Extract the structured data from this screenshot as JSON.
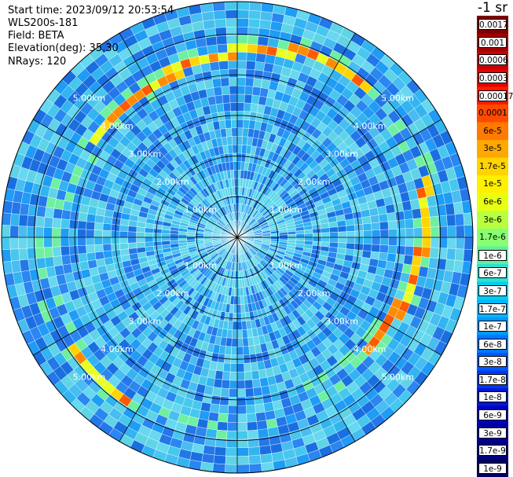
{
  "info": {
    "start_time": "Start time: 2023/09/12 20:53:54",
    "device": "WLS200s-181",
    "field": "Field: BETA",
    "elevation": "Elevation(deg): 35.30",
    "nrays": "NRays: 120"
  },
  "range_labels": [
    "1.00km",
    "2.00km",
    "3.00km",
    "4.00km",
    "5.00km"
  ],
  "colorbar": {
    "title": "-1 sr",
    "labels": [
      "0.0017",
      "0.001",
      "0.0006",
      "0.0003",
      "0.00017",
      "0.0001",
      "6e-5",
      "3e-5",
      "1.7e-5",
      "1e-5",
      "6e-6",
      "3e-6",
      "1.7e-6",
      "1e-6",
      "6e-7",
      "3e-7",
      "1.7e-7",
      "1e-7",
      "6e-8",
      "3e-8",
      "1.7e-8",
      "1e-8",
      "6e-9",
      "3e-9",
      "1.7e-9",
      "1e-9"
    ],
    "colors": [
      "#7f0000",
      "#a00000",
      "#c80000",
      "#e60000",
      "#ff1a00",
      "#ff4a00",
      "#ff7a00",
      "#ffa800",
      "#ffd400",
      "#fff000",
      "#e8ff10",
      "#b8ff40",
      "#88ff70",
      "#60f0a0",
      "#30e0d0",
      "#00d0f0",
      "#00b8ff",
      "#0098ff",
      "#0078ff",
      "#0058ff",
      "#0038f0",
      "#0018d0",
      "#0000c0",
      "#0000a0",
      "#000080",
      "#000060"
    ]
  },
  "scan": {
    "rays": 120,
    "gates": 28,
    "max_range_km": 5.8
  }
}
